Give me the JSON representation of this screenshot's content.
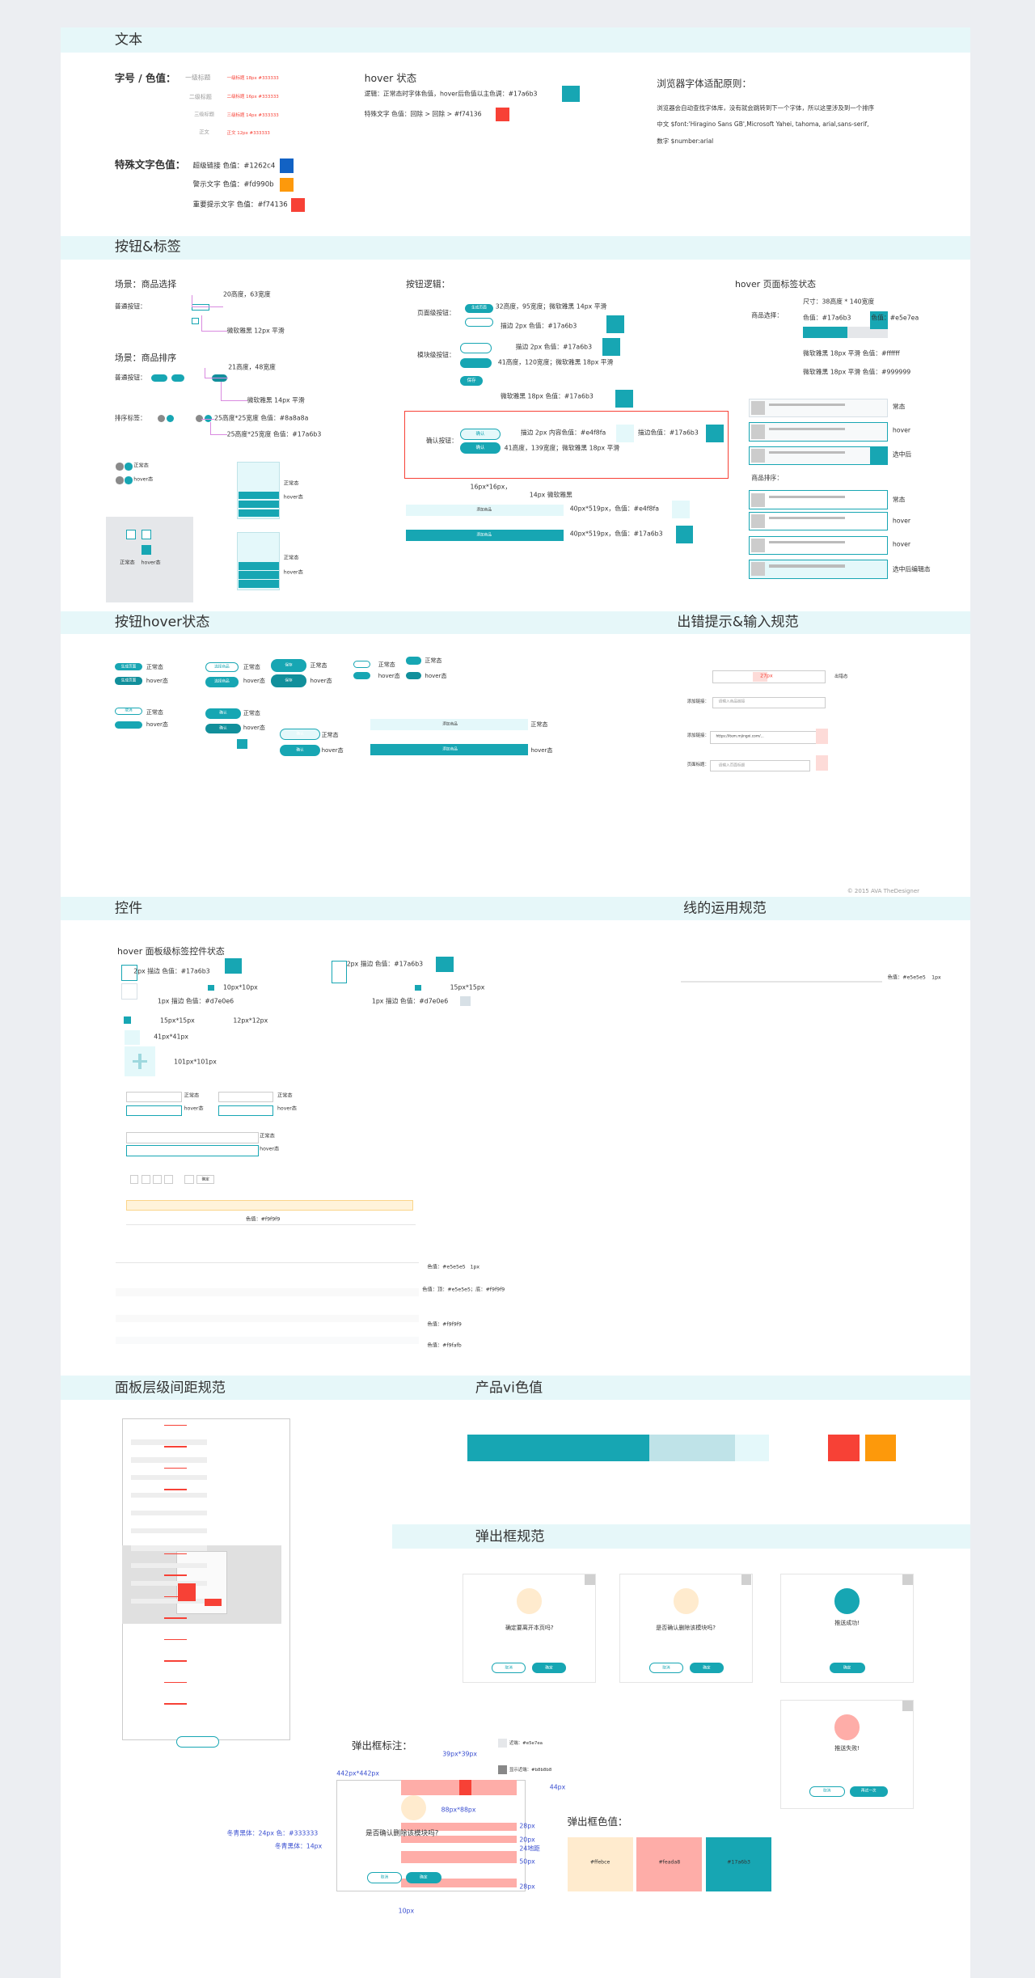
{
  "bars": [
    "文本",
    "按钮&标签",
    "按钮hover状态",
    "出错提示&输入规范",
    "控件",
    "线的运用规范",
    "面板层级间距规范",
    "产品vi色值",
    "弹出框规范"
  ],
  "text_items": [
    "字号 / 色值：",
    "一级标题",
    "二级标题",
    "三级标题",
    "正文",
    "一级标题 18px #333333",
    "二级标题 16px #333333",
    "三级标题 14px #333333",
    "正文 12px #333333",
    "特殊文字色值：",
    "超级链接 色值：#1262c4",
    "警示文字 色值：#fd990b",
    "重要提示文字 色值：#f74136",
    "hover 状态",
    "逻辑：正常态时字体色值，hover后色值以主色调：#17a6b3",
    "特殊文字 色值：回除 > 回除 > #f74136",
    "浏览器字体适配原则：",
    "浏览器会自动查找字体库，没有就会跳转到下一个字体，所以这里涉及到一个排序",
    "中文 $font:'Hiragino Sans GB',Microsoft Yahei, tahoma, arial,sans-serif,",
    "数字 $number:arial"
  ],
  "button_items": [
    "场景：商品选择",
    "普通按钮：",
    "20高度，63宽度",
    "微软雅黑 12px 平滑",
    "场景：商品排序",
    "普通按钮：",
    "21高度，48宽度",
    "微软雅黑 14px 平滑",
    "排序标签：",
    "25高度*25宽度 色值：#8a8a8a",
    "25高度*25宽度 色值：#17a6b3",
    "正常态",
    "hover态",
    "正常态",
    "hover态",
    "正常态",
    "hover态",
    "正常态",
    "hover态",
    "按钮逻辑：",
    "页面级按钮：",
    "32高度，95宽度；微软雅黑 14px 平滑",
    "描边 2px 色值：#17a6b3",
    "模块级按钮：",
    "描边 2px 色值：#17a6b3",
    "41高度，120宽度；微软雅黑 18px 平滑",
    "微软雅黑 18px 色值：#17a6b3",
    "确认按钮：",
    "描边 2px 内容色值：#e4f8fa",
    "描边色值：#17a6b3",
    "41高度，139宽度；微软雅黑 18px 平滑",
    "16px*16px，",
    "14px 微软雅黑",
    "40px*519px，色值：#e4f8fa",
    "40px*519px，色值：#17a6b3",
    "hover 页面标签状态",
    "商品选择：",
    "尺寸：38高度 * 140宽度",
    "色值：#17a6b3",
    "色值：#e5e7ea",
    "微软雅黑 18px 平滑 色值：#ffffff",
    "微软雅黑 18px 平滑 色值：#999999",
    "常态",
    "hover",
    "选中后",
    "商品排序：",
    "常态",
    "hover",
    "hover",
    "选中后编辑态",
    "生成页面",
    "保存",
    "确认",
    "确认",
    "添加商品",
    "添加商品"
  ],
  "hover_items": [
    "正常态",
    "hover态",
    "正常态",
    "hover态",
    "正常态",
    "hover态",
    "正常态",
    "hover态",
    "正常态",
    "hover态",
    "正常态",
    "hover态",
    "正常态",
    "hover态",
    "正常态",
    "hover态",
    "正常态",
    "hover态",
    "生成页面",
    "生成页面",
    "选择商品",
    "选择商品",
    "保存",
    "保存",
    "确认",
    "确认",
    "确认",
    "确认",
    "添加商品",
    "添加商品",
    "取消",
    "27px",
    "出错态",
    "添加链接：",
    "请输入商品链接",
    "添加链接：",
    "https://item.mjingxi.com/...",
    "页面标题：",
    "请输入页面标题",
    "© 2015 AVA TheDesigner"
  ],
  "control_items": [
    "hover 面板级标签控件状态",
    "2px 描边 色值：#17a6b3",
    "1px 描边 色值：#d7e0e6",
    "10px*10px",
    "2px 描边 色值：#17a6b3",
    "15px*15px",
    "1px 描边 色值：#d7e0e6",
    "15px*15px",
    "12px*12px",
    "41px*41px",
    "101px*101px",
    "正常态",
    "hover态",
    "正常态",
    "hover态",
    "正常态",
    "hover态",
    "色值：#e5e5e5",
    "1px",
    "色值：#f9f9f9",
    "色值：#e5e5e5",
    "1px",
    "色值：顶：#e5e5e5；底：#f9f9f9",
    "色值：#f9f9f9",
    "色值：#f9fafb",
    "确定"
  ],
  "dialog_items": [
    "确定要离开本页吗?",
    "是否确认删除该模块吗?",
    "推送成功!",
    "推送失败!",
    "取消",
    "确定",
    "取消",
    "确定",
    "确定",
    "取消",
    "再试一次",
    "弹出框标注：",
    "39px*39px",
    "442px*442px",
    "88px*88px",
    "44px",
    "28px",
    "20px",
    "24地距",
    "50px",
    "28px",
    "冬青黑体：24px 色：#333333",
    "冬青黑体：14px",
    "10px",
    "近端：#e5e7ea",
    "显示近端：#b8b8b8",
    "是否确认删除该模块吗?",
    "取消",
    "确定",
    "弹出框色值：",
    "#ffebce",
    "#feada8",
    "#17a6b3"
  ]
}
